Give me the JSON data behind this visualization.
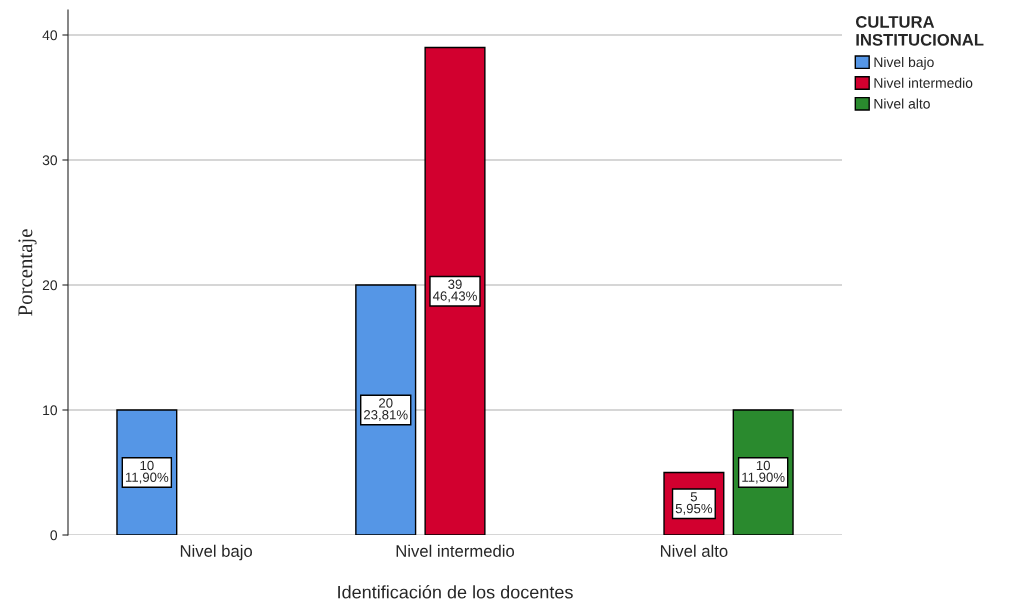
{
  "chart_data": {
    "type": "bar",
    "xlabel": "Identificación de los docentes",
    "ylabel": "Porcentaje",
    "legend_title": "CULTURA\nINSTITUCIONAL",
    "categories": [
      "Nivel bajo",
      "Nivel intermedio",
      "Nivel alto"
    ],
    "series": [
      {
        "name": "Nivel bajo",
        "color": "#5596e6",
        "values": [
          10,
          20,
          null
        ],
        "value_labels": [
          "10\n11,90%",
          "20\n23,81%",
          null
        ]
      },
      {
        "name": "Nivel intermedio",
        "color": "#d2002f",
        "values": [
          null,
          39,
          5
        ],
        "value_labels": [
          null,
          "39\n46,43%",
          "5\n5,95%"
        ]
      },
      {
        "name": "Nivel alto",
        "color": "#2a8a2e",
        "values": [
          null,
          null,
          10
        ],
        "value_labels": [
          null,
          null,
          "10\n11,90%"
        ]
      }
    ],
    "ylim": [
      0,
      42
    ],
    "yticks": [
      0,
      10,
      20,
      30,
      40
    ],
    "grid": "y",
    "legend": "right"
  }
}
